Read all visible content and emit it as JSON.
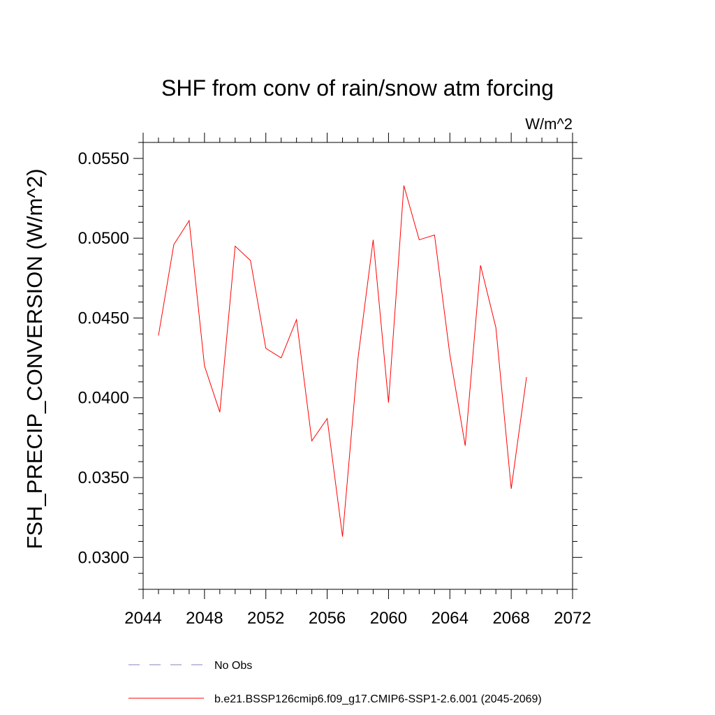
{
  "chart_data": {
    "type": "line",
    "title": "SHF from conv of rain/snow atm forcing",
    "units": "W/m^2",
    "xlabel": "",
    "ylabel": "FSH_PRECIP_CONVERSION  (W/m^2)",
    "xlim": [
      2044,
      2072
    ],
    "ylim": [
      0.028,
      0.056
    ],
    "x_ticks": [
      2044,
      2048,
      2052,
      2056,
      2060,
      2064,
      2068,
      2072
    ],
    "x_tick_labels": [
      "2044",
      "2048",
      "2052",
      "2056",
      "2060",
      "2064",
      "2068",
      "2072"
    ],
    "y_ticks": [
      0.03,
      0.035,
      0.04,
      0.045,
      0.05,
      0.055
    ],
    "y_tick_labels": [
      "0.0300",
      "0.0350",
      "0.0400",
      "0.0450",
      "0.0500",
      "0.0550"
    ],
    "grid": false,
    "legend_position": "bottom",
    "series": [
      {
        "name": "b.e21.BSSP126cmip6.f09_g17.CMIP6-SSP1-2.6.001 (2045-2069)",
        "color": "#ff0000",
        "style": "solid",
        "x": [
          2045,
          2046,
          2047,
          2048,
          2049,
          2050,
          2051,
          2052,
          2053,
          2054,
          2055,
          2056,
          2057,
          2058,
          2059,
          2060,
          2061,
          2062,
          2063,
          2064,
          2065,
          2066,
          2067,
          2068,
          2069
        ],
        "y": [
          0.0439,
          0.0496,
          0.0511,
          0.042,
          0.0391,
          0.0495,
          0.0486,
          0.0431,
          0.0425,
          0.0449,
          0.0373,
          0.0387,
          0.0313,
          0.0424,
          0.0499,
          0.0397,
          0.0533,
          0.0499,
          0.0502,
          0.0427,
          0.037,
          0.0483,
          0.0444,
          0.0343,
          0.0413
        ]
      }
    ],
    "legend": [
      {
        "label": "No Obs",
        "color": "#8080c0",
        "style": "dashed"
      },
      {
        "label": "b.e21.BSSP126cmip6.f09_g17.CMIP6-SSP1-2.6.001 (2045-2069)",
        "color": "#ff0000",
        "style": "solid"
      }
    ]
  }
}
